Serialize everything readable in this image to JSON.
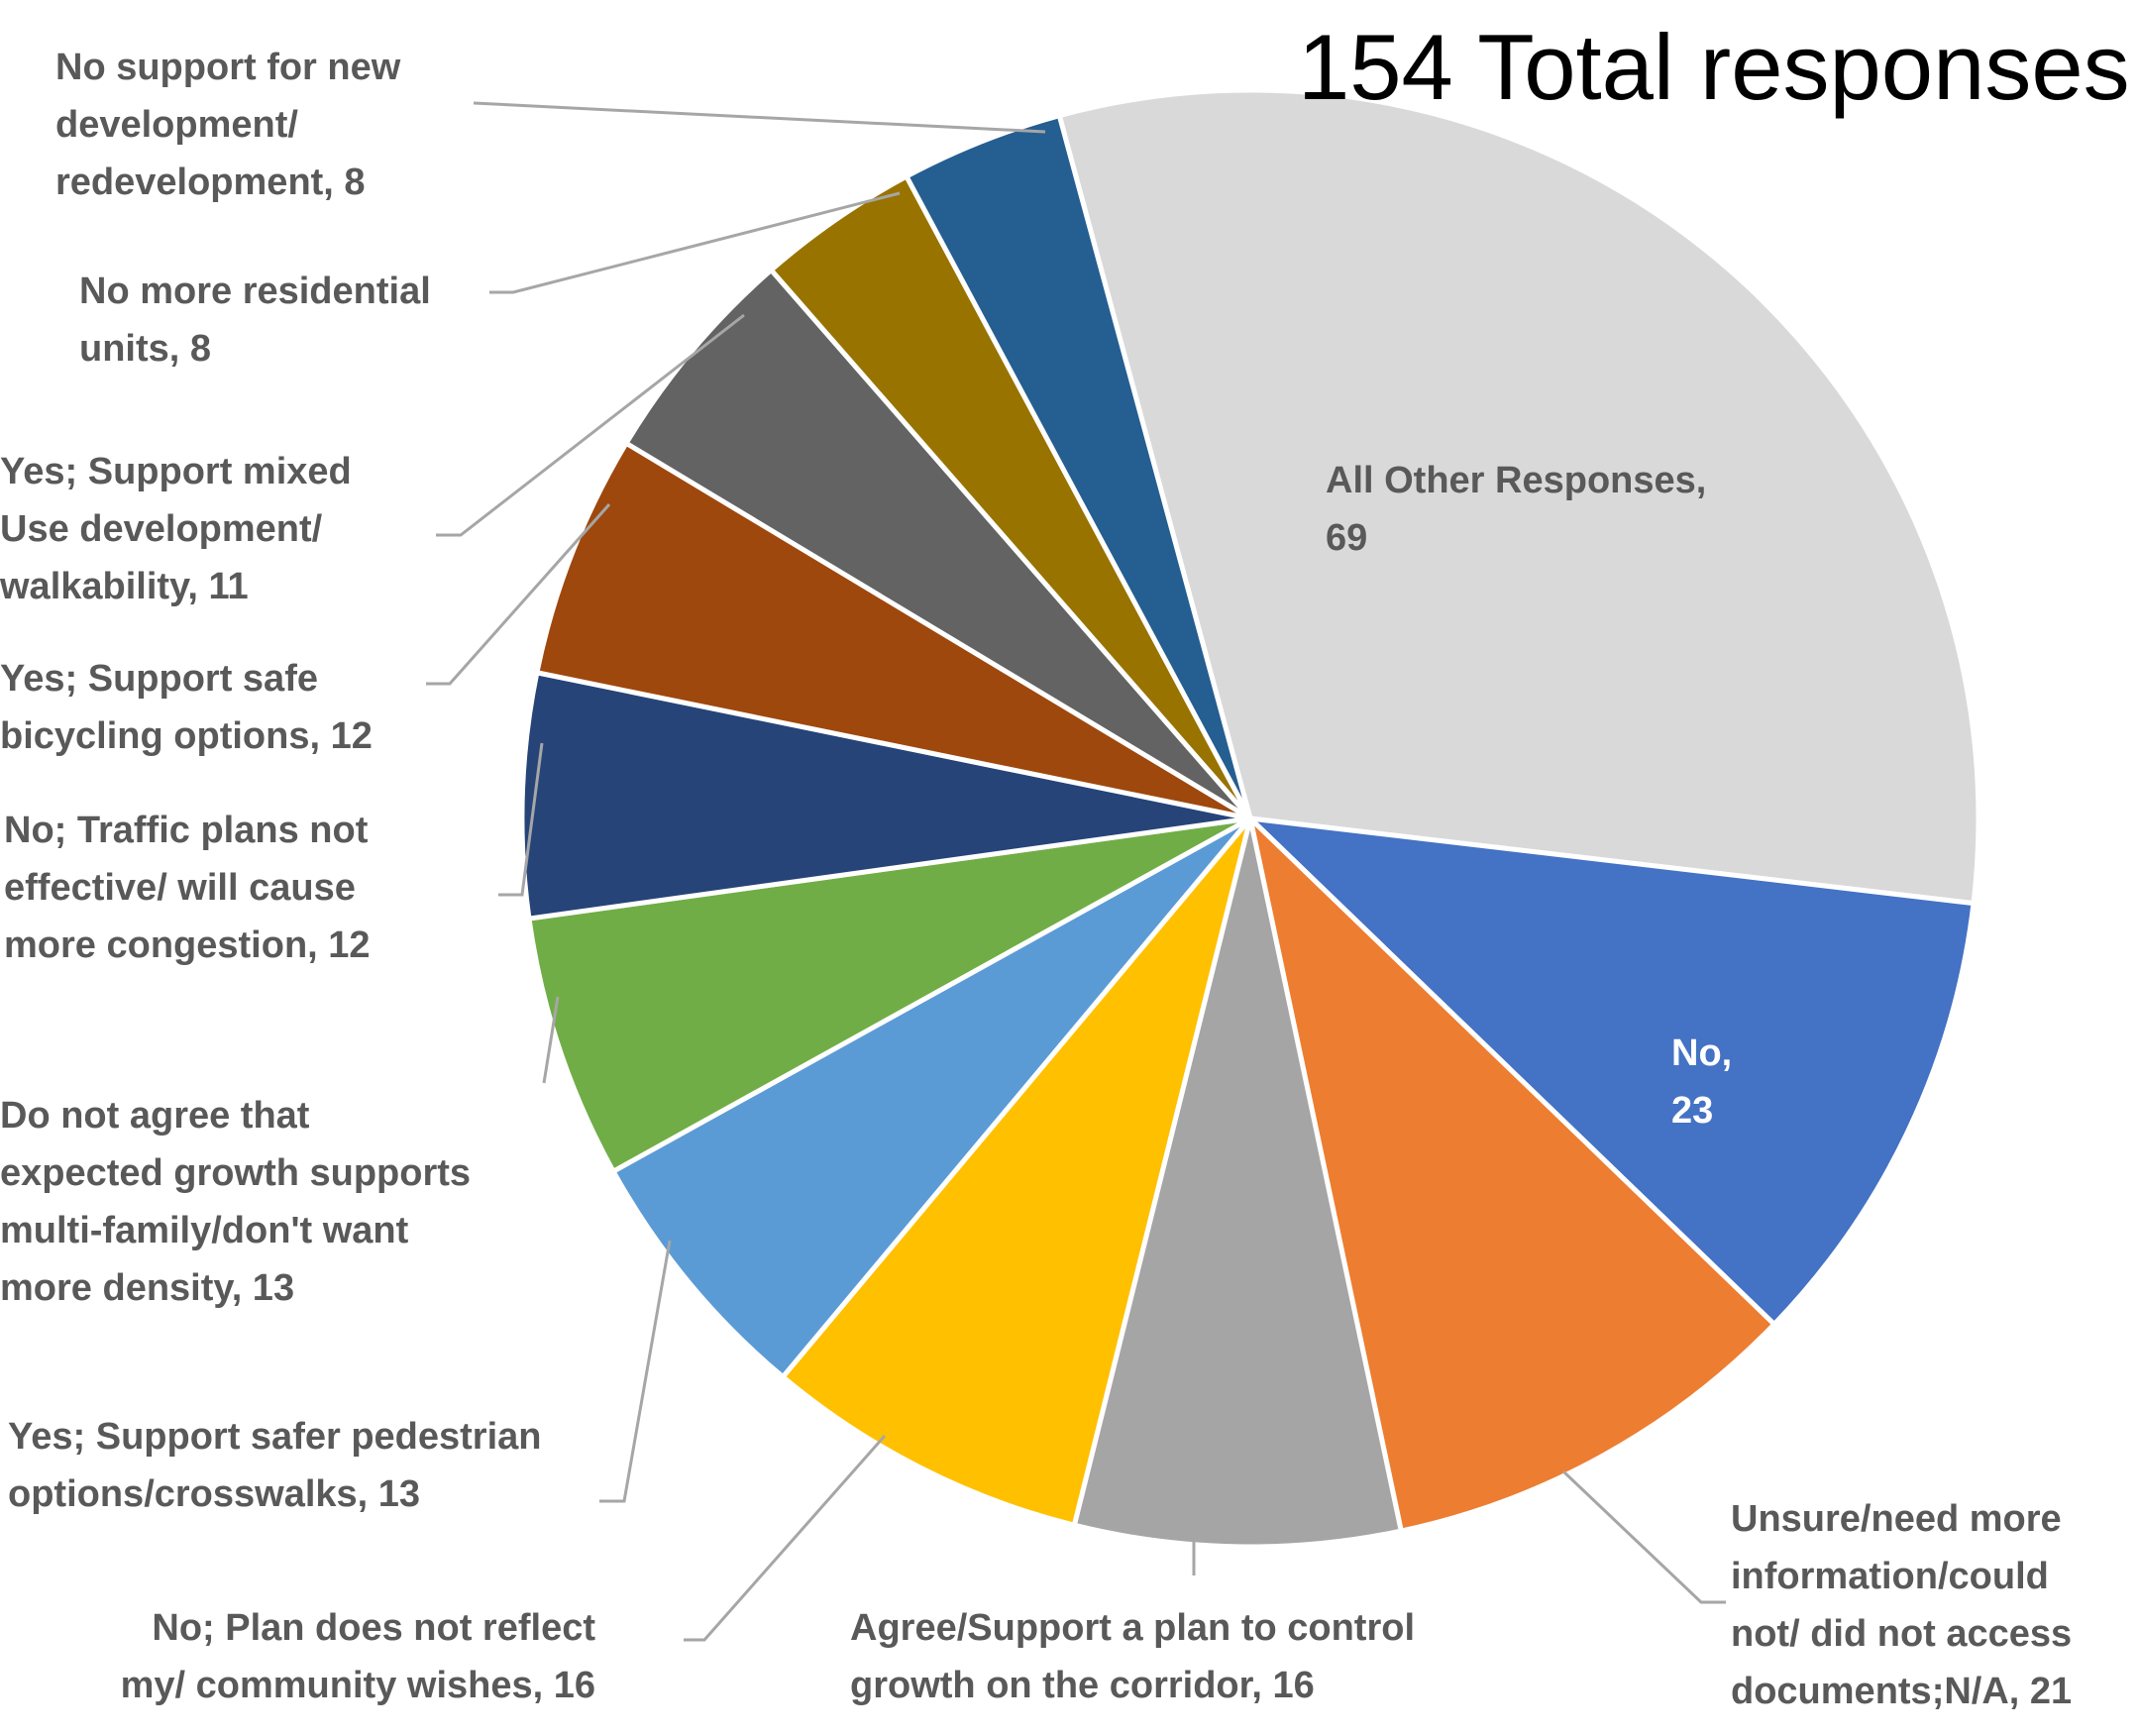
{
  "chart_data": {
    "type": "pie",
    "title": "154 Total responses",
    "total": 154,
    "slices": [
      {
        "label_lines": [
          "All Other Responses,",
          "69"
        ],
        "value": 69,
        "color": "#d9d9d9",
        "label_color": "#595959"
      },
      {
        "label_lines": [
          "No,",
          "23"
        ],
        "value": 23,
        "color": "#4472c4",
        "label_color": "#ffffff"
      },
      {
        "label_lines": [
          "Unsure/need more",
          "information/could",
          "not/ did not access",
          "documents;N/A, 21"
        ],
        "value": 21,
        "color": "#ed7d31",
        "label_color": "#595959"
      },
      {
        "label_lines": [
          "Agree/Support a plan to control",
          "growth on the corridor, 16"
        ],
        "value": 16,
        "color": "#a5a5a5",
        "label_color": "#595959"
      },
      {
        "label_lines": [
          "No; Plan does not reflect",
          "my/ community wishes, 16"
        ],
        "value": 16,
        "color": "#ffc000",
        "label_color": "#595959"
      },
      {
        "label_lines": [
          "Yes; Support safer pedestrian",
          "options/crosswalks, 13"
        ],
        "value": 13,
        "color": "#5b9bd5",
        "label_color": "#595959"
      },
      {
        "label_lines": [
          "Do not agree that",
          "expected growth supports",
          "multi-family/don't want",
          "more density, 13"
        ],
        "value": 13,
        "color": "#70ad47",
        "label_color": "#595959"
      },
      {
        "label_lines": [
          "No; Traffic plans not",
          "effective/ will cause",
          "more congestion, 12"
        ],
        "value": 12,
        "color": "#264478",
        "label_color": "#595959"
      },
      {
        "label_lines": [
          "Yes; Support safe",
          "bicycling options, 12"
        ],
        "value": 12,
        "color": "#9e480e",
        "label_color": "#595959"
      },
      {
        "label_lines": [
          "Yes; Support mixed",
          "Use development/",
          "walkability, 11"
        ],
        "value": 11,
        "color": "#636363",
        "label_color": "#595959"
      },
      {
        "label_lines": [
          "No more residential",
          "units, 8"
        ],
        "value": 8,
        "color": "#997300",
        "label_color": "#595959"
      },
      {
        "label_lines": [
          "No support for new",
          "development/",
          "redevelopment, 8"
        ],
        "value": 8,
        "color": "#255e91",
        "label_color": "#595959"
      }
    ]
  }
}
